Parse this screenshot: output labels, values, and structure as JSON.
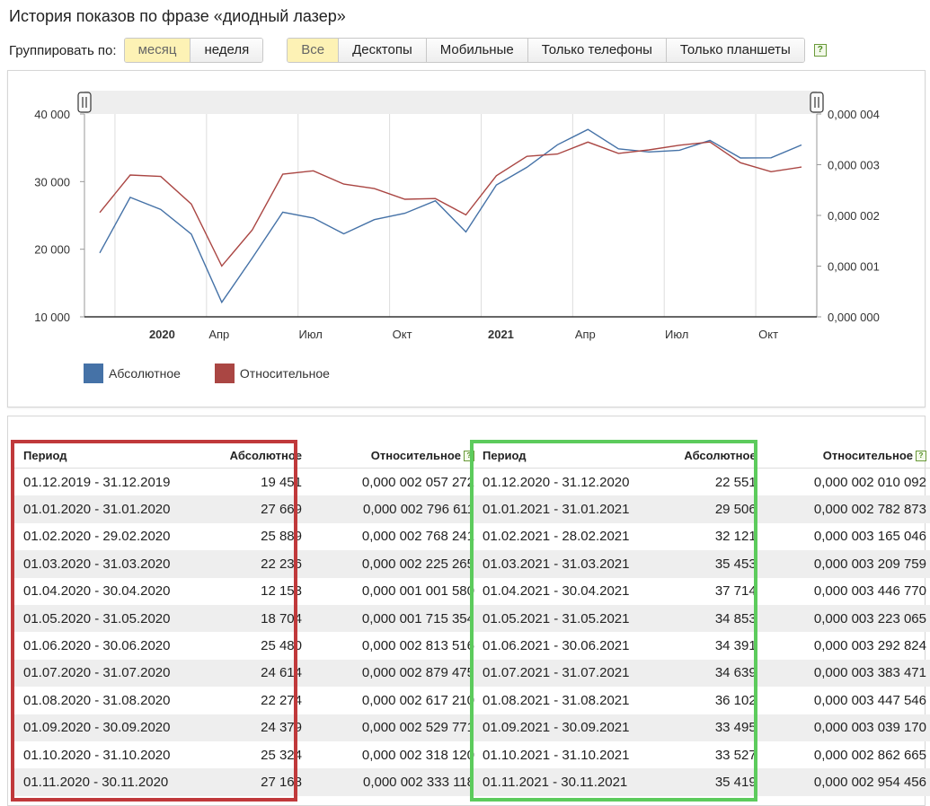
{
  "title": "История показов по фразе «диодный лазер»",
  "controls": {
    "group_label": "Группировать по:",
    "group_by": [
      "месяц",
      "неделя"
    ],
    "filters": [
      "Все",
      "Десктопы",
      "Мобильные",
      "Только телефоны",
      "Только планшеты"
    ],
    "help": "?"
  },
  "chart_data": {
    "type": "line",
    "x": [
      "2019-12",
      "2020-01",
      "2020-02",
      "2020-03",
      "2020-04",
      "2020-05",
      "2020-06",
      "2020-07",
      "2020-08",
      "2020-09",
      "2020-10",
      "2020-11",
      "2020-12",
      "2021-01",
      "2021-02",
      "2021-03",
      "2021-04",
      "2021-05",
      "2021-06",
      "2021-07",
      "2021-08",
      "2021-09",
      "2021-10",
      "2021-11"
    ],
    "series": [
      {
        "name": "Абсолютное",
        "axis": "left",
        "color": "#4572a7",
        "values": [
          19451,
          27669,
          25889,
          22236,
          12153,
          18704,
          25480,
          24614,
          22274,
          24379,
          25324,
          27168,
          22551,
          29506,
          32121,
          35453,
          37714,
          34853,
          34391,
          34639,
          36102,
          33495,
          33527,
          35419
        ]
      },
      {
        "name": "Относительное",
        "axis": "right",
        "color": "#aa4643",
        "values": [
          2.057272e-06,
          2.796611e-06,
          2.768241e-06,
          2.225265e-06,
          1.00158e-06,
          1.715354e-06,
          2.813516e-06,
          2.879475e-06,
          2.61721e-06,
          2.529771e-06,
          2.31812e-06,
          2.333118e-06,
          2.010092e-06,
          2.782873e-06,
          3.165046e-06,
          3.209759e-06,
          3.44677e-06,
          3.223065e-06,
          3.292824e-06,
          3.383471e-06,
          3.447546e-06,
          3.03917e-06,
          2.862665e-06,
          2.954456e-06
        ]
      }
    ],
    "y_left": {
      "ylim": [
        10000,
        40000
      ],
      "ticks": [
        "40 000",
        "30 000",
        "20 000",
        "10 000"
      ]
    },
    "y_right": {
      "ylim": [
        0,
        4e-06
      ],
      "ticks": [
        "0,000 004",
        "0,000 003",
        "0,000 002",
        "0,000 001",
        "0,000 000"
      ]
    },
    "x_ticks": [
      {
        "label": "2020",
        "bold": true
      },
      {
        "label": "Апр",
        "bold": false
      },
      {
        "label": "Июл",
        "bold": false
      },
      {
        "label": "Окт",
        "bold": false
      },
      {
        "label": "2021",
        "bold": true
      },
      {
        "label": "Апр",
        "bold": false
      },
      {
        "label": "Июл",
        "bold": false
      },
      {
        "label": "Окт",
        "bold": false
      }
    ],
    "grid": true,
    "legend": "bottom-left"
  },
  "tables": [
    {
      "headers": {
        "period": "Период",
        "absolute": "Абсолютное",
        "relative": "Относительное"
      },
      "rows": [
        [
          "01.12.2019 - 31.12.2019",
          "19 451",
          "0,000 002 057 272"
        ],
        [
          "01.01.2020 - 31.01.2020",
          "27 669",
          "0,000 002 796 611"
        ],
        [
          "01.02.2020 - 29.02.2020",
          "25 889",
          "0,000 002 768 241"
        ],
        [
          "01.03.2020 - 31.03.2020",
          "22 236",
          "0,000 002 225 265"
        ],
        [
          "01.04.2020 - 30.04.2020",
          "12 153",
          "0,000 001 001 580"
        ],
        [
          "01.05.2020 - 31.05.2020",
          "18 704",
          "0,000 001 715 354"
        ],
        [
          "01.06.2020 - 30.06.2020",
          "25 480",
          "0,000 002 813 516"
        ],
        [
          "01.07.2020 - 31.07.2020",
          "24 614",
          "0,000 002 879 475"
        ],
        [
          "01.08.2020 - 31.08.2020",
          "22 274",
          "0,000 002 617 210"
        ],
        [
          "01.09.2020 - 30.09.2020",
          "24 379",
          "0,000 002 529 771"
        ],
        [
          "01.10.2020 - 31.10.2020",
          "25 324",
          "0,000 002 318 120"
        ],
        [
          "01.11.2020 - 30.11.2020",
          "27 168",
          "0,000 002 333 118"
        ]
      ]
    },
    {
      "headers": {
        "period": "Период",
        "absolute": "Абсолютное",
        "relative": "Относительное"
      },
      "rows": [
        [
          "01.12.2020 - 31.12.2020",
          "22 551",
          "0,000 002 010 092"
        ],
        [
          "01.01.2021 - 31.01.2021",
          "29 506",
          "0,000 002 782 873"
        ],
        [
          "01.02.2021 - 28.02.2021",
          "32 121",
          "0,000 003 165 046"
        ],
        [
          "01.03.2021 - 31.03.2021",
          "35 453",
          "0,000 003 209 759"
        ],
        [
          "01.04.2021 - 30.04.2021",
          "37 714",
          "0,000 003 446 770"
        ],
        [
          "01.05.2021 - 31.05.2021",
          "34 853",
          "0,000 003 223 065"
        ],
        [
          "01.06.2021 - 30.06.2021",
          "34 391",
          "0,000 003 292 824"
        ],
        [
          "01.07.2021 - 31.07.2021",
          "34 639",
          "0,000 003 383 471"
        ],
        [
          "01.08.2021 - 31.08.2021",
          "36 102",
          "0,000 003 447 546"
        ],
        [
          "01.09.2021 - 30.09.2021",
          "33 495",
          "0,000 003 039 170"
        ],
        [
          "01.10.2021 - 31.10.2021",
          "33 527",
          "0,000 002 862 665"
        ],
        [
          "01.11.2021 - 30.11.2021",
          "35 419",
          "0,000 002 954 456"
        ]
      ]
    }
  ],
  "highlights": {
    "left_frame_color": "#c0393b",
    "right_frame_color": "#5ccb5c"
  }
}
